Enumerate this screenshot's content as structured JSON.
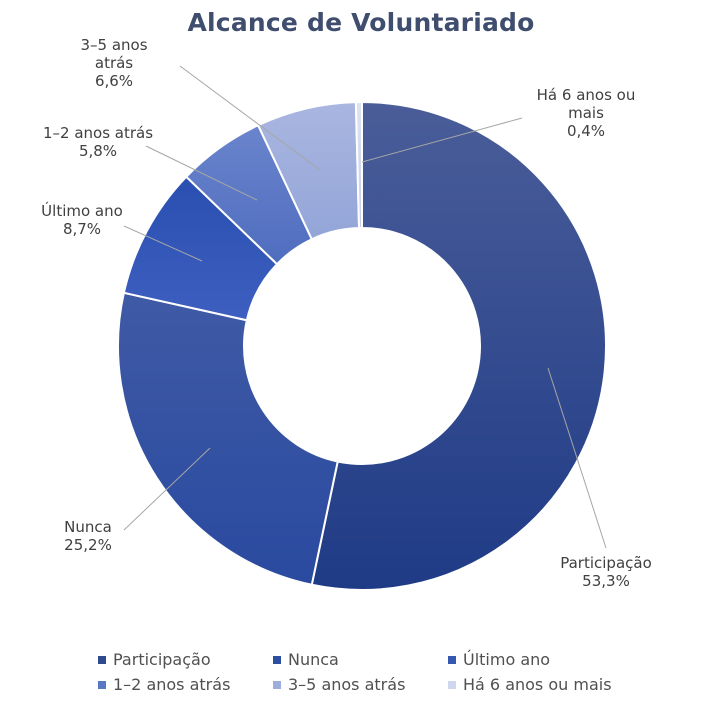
{
  "chart_data": {
    "type": "pie",
    "donut": true,
    "title": "Alcance de Voluntariado",
    "categories": [
      "Participação",
      "Nunca",
      "Último ano",
      "1–2 anos atrás",
      "3–5 anos atrás",
      "Há 6 anos ou mais"
    ],
    "values": [
      53.3,
      25.2,
      8.7,
      5.8,
      6.6,
      0.4
    ],
    "value_labels": [
      "53,3%",
      "25,2%",
      "8,7%",
      "5,8%",
      "6,6%",
      "0,4%"
    ],
    "label_lines": [
      [
        "Participação"
      ],
      [
        "Nunca"
      ],
      [
        "Último ano"
      ],
      [
        "1–2 anos atrás"
      ],
      [
        "3–5 anos",
        "atrás"
      ],
      [
        "Há 6 anos ou",
        "mais"
      ]
    ],
    "colors": [
      "#2f4a8e",
      "#2d4fa3",
      "#3558b3",
      "#5a77c4",
      "#9eaedc",
      "#cfd7ee"
    ],
    "legend_position": "bottom"
  }
}
